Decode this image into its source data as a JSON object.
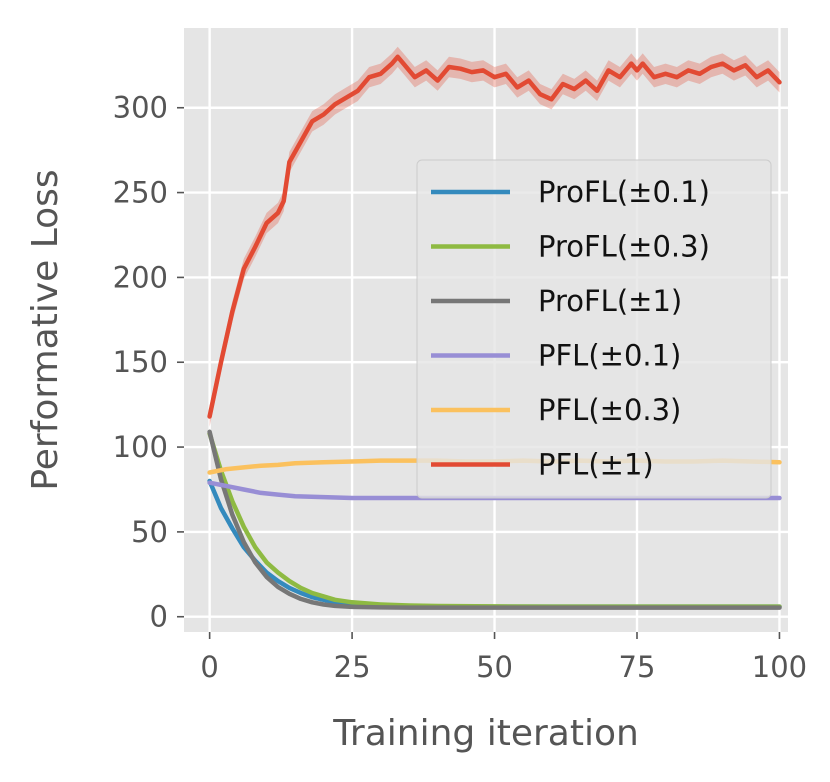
{
  "chart_data": {
    "type": "line",
    "xlabel": "Training iteration",
    "ylabel": "Performative Loss",
    "xlim": [
      -4.5,
      101.5
    ],
    "ylim": [
      -9,
      347
    ],
    "xticks": [
      0,
      25,
      50,
      75,
      100
    ],
    "yticks": [
      0,
      50,
      100,
      150,
      200,
      250,
      300
    ],
    "grid": true,
    "background": "#e5e5e5",
    "legend_position": "center-right",
    "series": [
      {
        "name": "ProFL(±0.1)",
        "color": "#348abd",
        "x": [
          0,
          2,
          4,
          6,
          8,
          10,
          12,
          14,
          16,
          18,
          20,
          22,
          25,
          30,
          35,
          40,
          50,
          60,
          70,
          80,
          90,
          100
        ],
        "y": [
          80,
          64,
          52,
          41,
          33,
          26,
          21,
          17,
          14,
          11.5,
          10,
          8.5,
          7.5,
          6.5,
          6.2,
          6,
          6,
          6,
          6,
          6,
          6,
          6
        ]
      },
      {
        "name": "ProFL(±0.3)",
        "color": "#8eba42",
        "x": [
          0,
          2,
          4,
          6,
          8,
          10,
          12,
          14,
          16,
          18,
          20,
          22,
          25,
          30,
          35,
          40,
          50,
          60,
          70,
          80,
          90,
          100
        ],
        "y": [
          108,
          86,
          68,
          53,
          41,
          32,
          26,
          21,
          17,
          14,
          12,
          10,
          8.5,
          7.2,
          6.6,
          6.3,
          6.1,
          6,
          6,
          6,
          6,
          6
        ]
      },
      {
        "name": "ProFL(±1)",
        "color": "#777777",
        "x": [
          0,
          2,
          4,
          6,
          8,
          10,
          12,
          14,
          16,
          18,
          20,
          22,
          25,
          30,
          35,
          40,
          50,
          60,
          70,
          80,
          90,
          100
        ],
        "y": [
          109,
          81,
          60,
          44,
          32,
          23.5,
          17.5,
          13.5,
          10.5,
          8.5,
          7.2,
          6.4,
          5.8,
          5.5,
          5.4,
          5.4,
          5.4,
          5.4,
          5.4,
          5.4,
          5.4,
          5.4
        ]
      },
      {
        "name": "PFL(±0.1)",
        "color": "#988ed5",
        "x": [
          0,
          3,
          6,
          9,
          12,
          15,
          20,
          25,
          30,
          35,
          40,
          50,
          60,
          70,
          80,
          90,
          100
        ],
        "y": [
          79,
          77,
          75,
          73,
          72,
          71,
          70.5,
          70,
          70,
          70,
          70,
          70,
          70,
          70,
          70,
          70,
          70
        ]
      },
      {
        "name": "PFL(±0.3)",
        "color": "#fbc15e",
        "x": [
          0,
          3,
          6,
          9,
          12,
          15,
          20,
          25,
          30,
          35,
          40,
          45,
          50,
          55,
          60,
          65,
          70,
          75,
          80,
          85,
          90,
          95,
          100
        ],
        "y": [
          85,
          87,
          88,
          89,
          89.5,
          90.5,
          91,
          91.5,
          92,
          92,
          92,
          91.5,
          91.5,
          92,
          91.5,
          92,
          91.5,
          92,
          91.5,
          91.5,
          92,
          91.5,
          91
        ]
      },
      {
        "name": "PFL(±1)",
        "color": "#e24a33",
        "x": [
          0,
          2,
          4,
          6,
          8,
          10,
          12,
          13,
          14,
          16,
          18,
          20,
          22,
          24,
          26,
          28,
          30,
          32,
          33,
          34,
          36,
          38,
          40,
          42,
          44,
          46,
          48,
          50,
          52,
          54,
          56,
          58,
          60,
          62,
          64,
          66,
          68,
          70,
          72,
          74,
          75,
          76,
          78,
          80,
          82,
          84,
          86,
          88,
          90,
          92,
          94,
          96,
          98,
          100
        ],
        "y": [
          118,
          150,
          180,
          205,
          218,
          232,
          238,
          245,
          268,
          280,
          292,
          296,
          302,
          306,
          310,
          318,
          320,
          326,
          330,
          326,
          318,
          322,
          316,
          324,
          323,
          321,
          322,
          318,
          320,
          312,
          316,
          308,
          305,
          314,
          311,
          316,
          310,
          322,
          318,
          326,
          322,
          326,
          318,
          320,
          318,
          322,
          320,
          324,
          326,
          322,
          325,
          318,
          322,
          315
        ]
      }
    ]
  }
}
